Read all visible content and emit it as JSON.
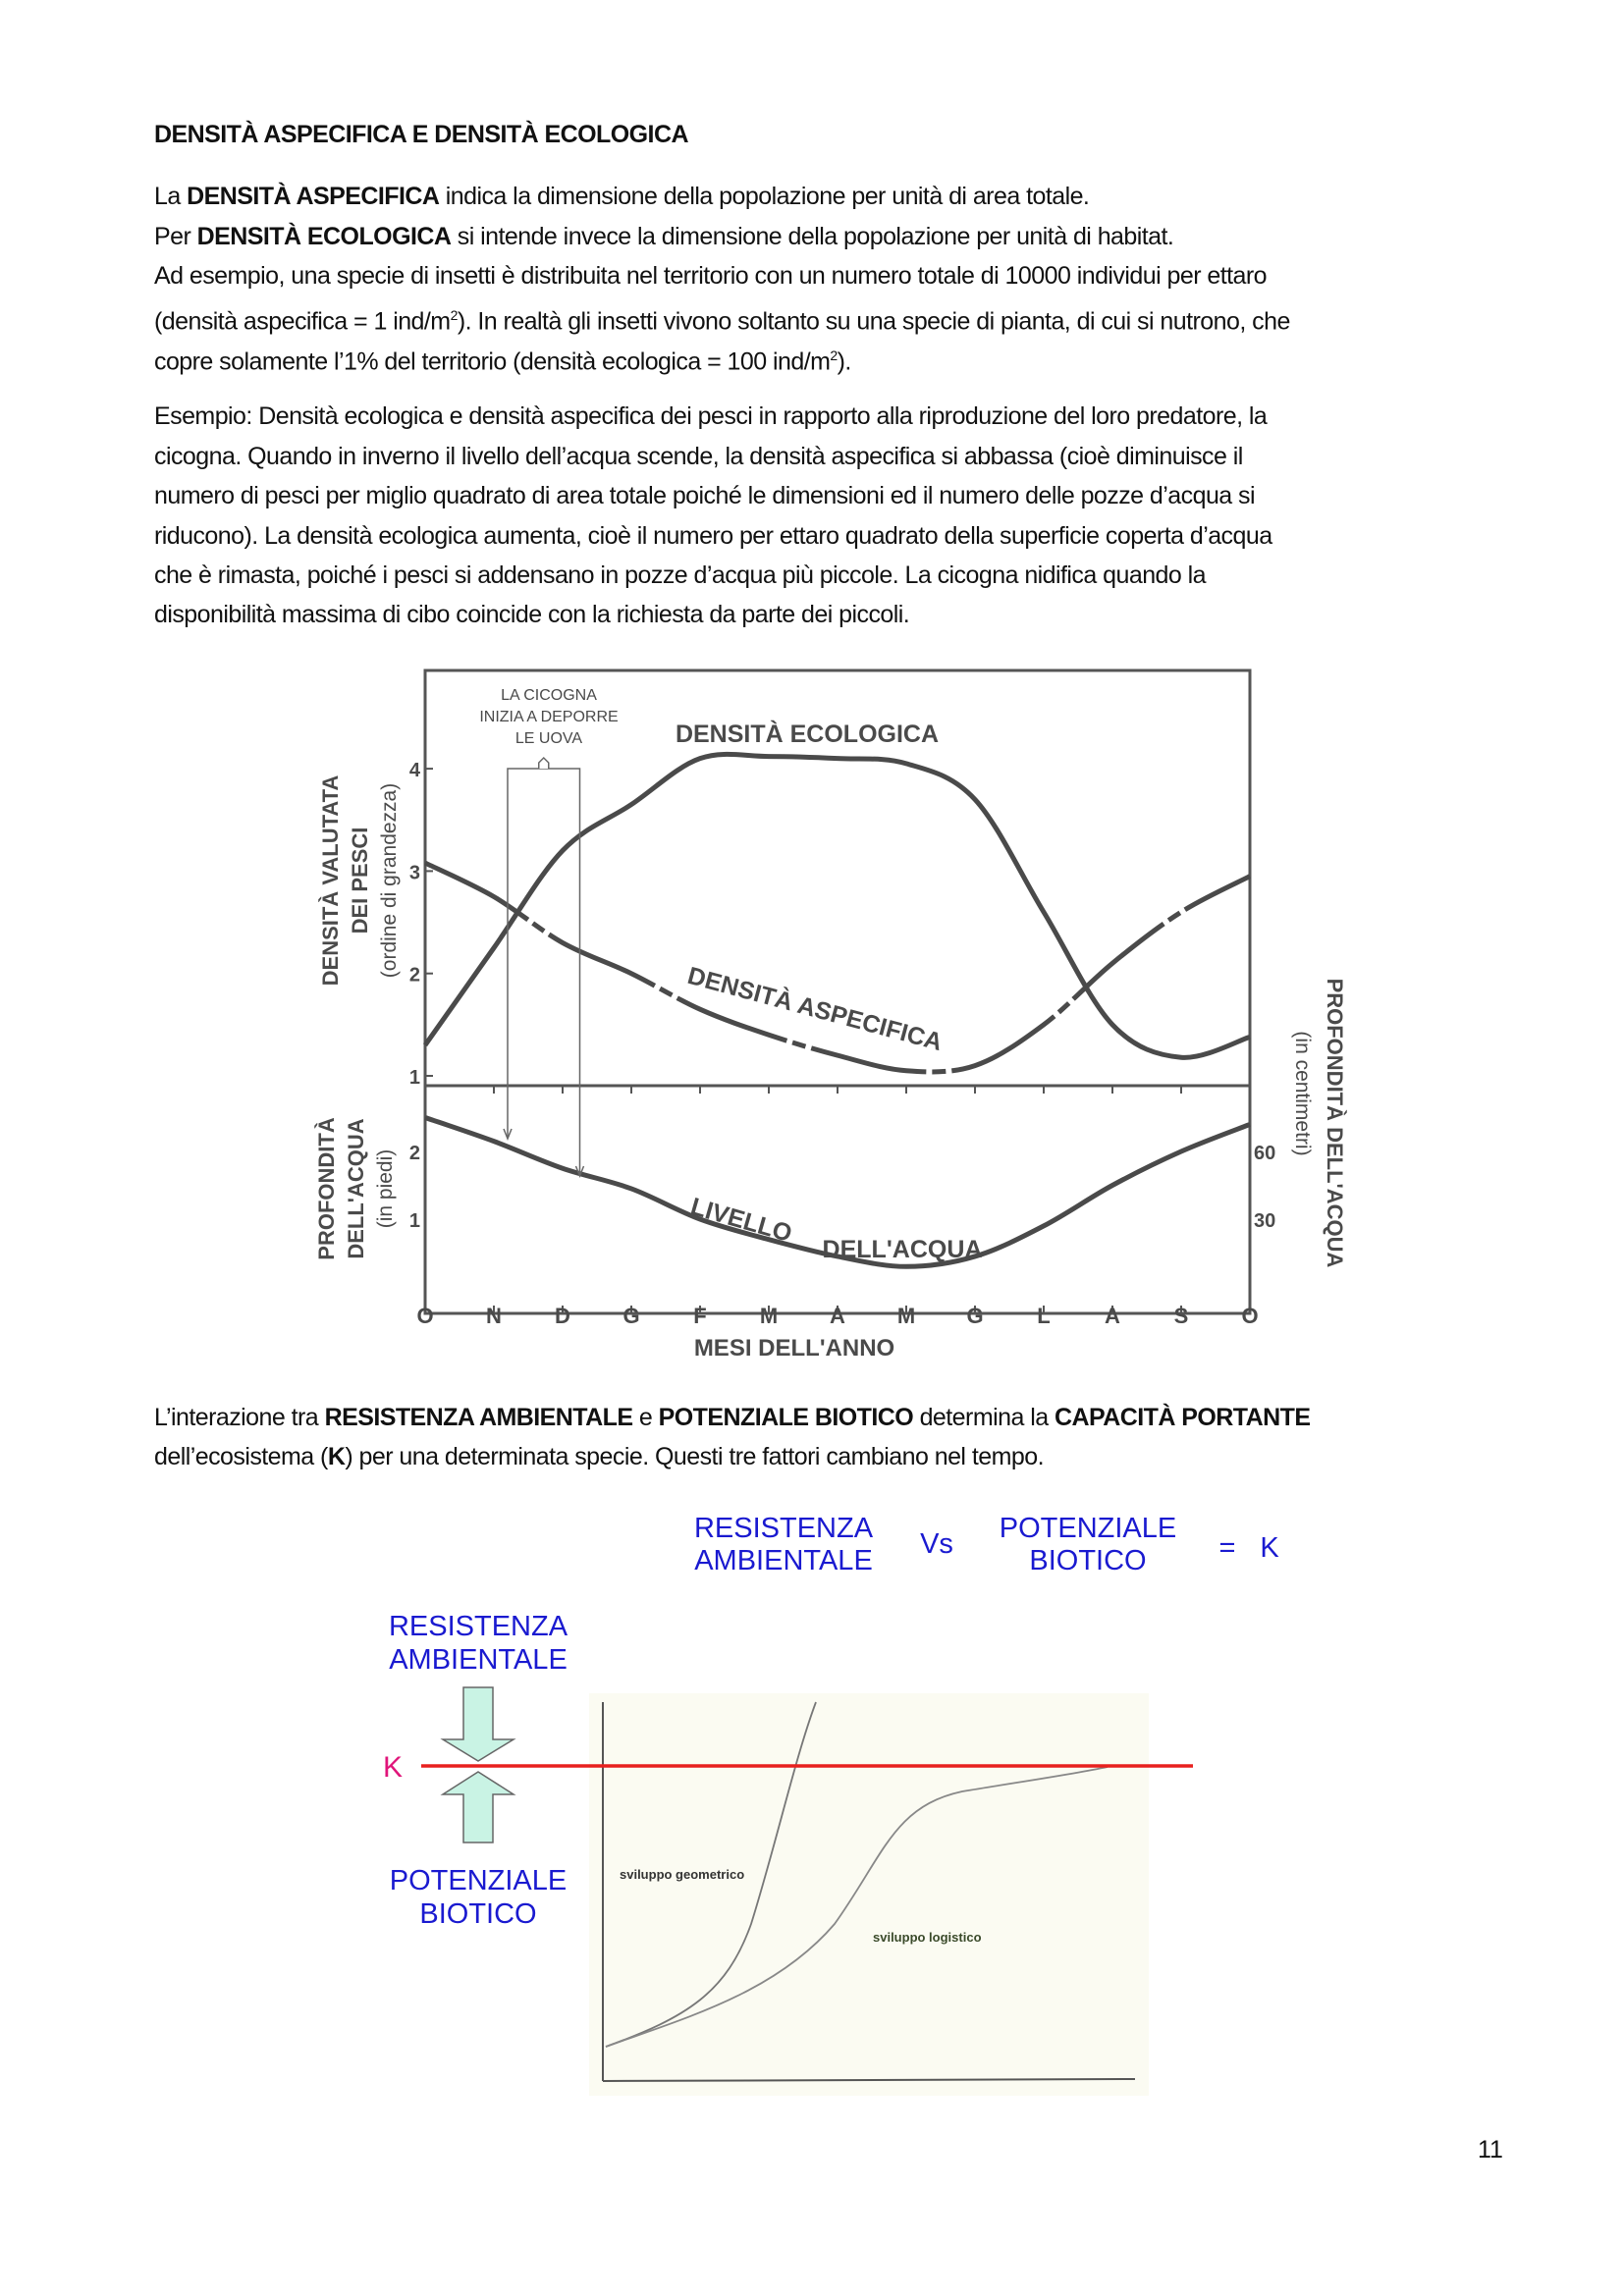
{
  "heading": "DENSITÀ ASPECIFICA E DENSITÀ ECOLOGICA",
  "para1": {
    "l1_pre": "La ",
    "l1_bold": "DENSITÀ ASPECIFICA",
    "l1_post": " indica la dimensione della popolazione per unità di area totale.",
    "l2_pre": "Per ",
    "l2_bold": "DENSITÀ ECOLOGICA",
    "l2_post": " si intende invece la dimensione della popolazione per unità di habitat.",
    "l3": "Ad esempio, una specie di insetti è distribuita nel territorio con un numero totale di 10000 individui per ettaro",
    "l4_pre": "(densità aspecifica = 1 ind/m",
    "l4_sup": "2",
    "l4_post": "). In realtà gli insetti vivono soltanto su una specie di pianta, di cui si nutrono, che",
    "l5_pre": "copre solamente l’1% del territorio (densità ecologica = 100 ind/m",
    "l5_sup": "2",
    "l5_post": ")."
  },
  "para2": [
    "Esempio: Densità ecologica e densità aspecifica dei pesci in rapporto alla riproduzione del loro predatore, la",
    "cicogna. Quando in inverno il livello dell’acqua scende, la densità aspecifica si abbassa (cioè diminuisce il",
    "numero di pesci per miglio quadrato di area totale poiché le dimensioni ed il numero delle pozze d’acqua si",
    "riducono). La densità ecologica aumenta, cioè il numero per ettaro quadrato della superficie coperta d’acqua",
    "che è rimasta, poiché i pesci si addensano in pozze d’acqua più piccole. La cicogna nidifica quando la",
    "disponibilità massima di cibo coincide con la richiesta da parte dei piccoli."
  ],
  "para3": {
    "l1_a": "L’interazione tra ",
    "l1_b": "RESISTENZA AMBIENTALE",
    "l1_c": " e ",
    "l1_d": "POTENZIALE BIOTICO",
    "l1_e": " determina la ",
    "l1_f": "CAPACITÀ PORTANTE",
    "l2_a": "dell’ecosistema (",
    "l2_b": "K",
    "l2_c": ") per una determinata specie. Questi tre fattori cambiano nel tempo."
  },
  "page_number": "11",
  "chart_data": [
    {
      "type": "line",
      "categories": [
        "O",
        "N",
        "D",
        "G",
        "F",
        "M",
        "A",
        "M",
        "G",
        "L",
        "A",
        "S",
        "O"
      ],
      "xlabel": "MESI DELL'ANNO",
      "upper_panel": {
        "ylabel": [
          "DENSITÀ VALUTATA",
          "DEI PESCI",
          "(ordine di grandezza)"
        ],
        "ylim": [
          1,
          4.5
        ],
        "yticks": [
          "1",
          "2",
          "3",
          "4"
        ],
        "series": [
          {
            "name": "DENSITÀ ECOLOGICA",
            "values": [
              1.3,
              2.25,
              3.2,
              3.65,
              4.1,
              4.12,
              4.1,
              4.05,
              3.7,
              2.6,
              1.5,
              1.18,
              1.38
            ]
          },
          {
            "name": "DENSITÀ ASPECIFICA",
            "values": [
              3.08,
              2.75,
              2.3,
              2.0,
              1.65,
              1.4,
              1.2,
              1.05,
              1.1,
              1.5,
              2.1,
              2.6,
              2.95
            ]
          }
        ],
        "annotation": [
          "LA CICOGNA",
          "INIZIA A DEPORRE",
          "LE UOVA"
        ],
        "annotation_range_months": [
          1.2,
          2.25
        ]
      },
      "lower_panel": {
        "ylabel_left": [
          "PROFONDITÀ",
          "DELL'ACQUA",
          "(in piedi)"
        ],
        "yticks_left": [
          "1",
          "2"
        ],
        "ylabel_right": [
          "PROFONDITÀ DELL'ACQUA",
          "(in centimetri)"
        ],
        "yticks_right": [
          "30",
          "60"
        ],
        "series": [
          {
            "name_parts": [
              "LIVELLO",
              "DELL'ACQUA"
            ],
            "values": [
              2.5,
              2.15,
              1.75,
              1.45,
              1.0,
              0.7,
              0.45,
              0.3,
              0.45,
              0.9,
              1.5,
              2.0,
              2.4
            ]
          }
        ]
      }
    },
    {
      "type": "line",
      "equation": {
        "left": [
          "RESISTENZA",
          "AMBIENTALE"
        ],
        "vs": "Vs",
        "right": [
          "POTENZIALE",
          "BIOTICO"
        ],
        "eq": "=",
        "k": "K"
      },
      "top_label": [
        "RESISTENZA",
        "AMBIENTALE"
      ],
      "bottom_label": [
        "POTENZIALE",
        "BIOTICO"
      ],
      "k_label": "K",
      "series": [
        {
          "name": "sviluppo geometrico"
        },
        {
          "name": "sviluppo logistico"
        }
      ],
      "colors": {
        "k_line": "#e8201e",
        "k_label": "#e0157a",
        "labels": "#1a1ad0",
        "arrows": "#c9f3e4"
      }
    }
  ]
}
